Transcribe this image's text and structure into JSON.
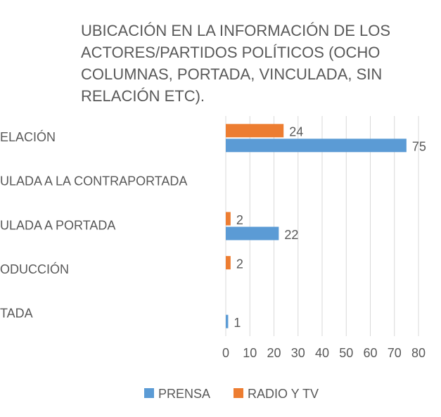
{
  "chart_data": {
    "type": "barh",
    "title": "UBICACIÓN EN LA INFORMACIÓN DE LOS ACTORES/PARTIDOS POLÍTICOS (OCHO COLUMNAS, PORTADA, VINCULADA, SIN RELACIÓN ETC).",
    "categories": [
      "ELACIÓN",
      "ULADA A LA CONTRAPORTADA",
      "ULADA A PORTADA",
      "ODUCCIÓN",
      "TADA"
    ],
    "series": [
      {
        "name": "PRENSA",
        "color": "#5b9bd5",
        "values": [
          75,
          null,
          22,
          null,
          1
        ]
      },
      {
        "name": "RADIO Y TV",
        "color": "#ed7d31",
        "values": [
          24,
          null,
          2,
          2,
          null
        ]
      }
    ],
    "xlim": [
      0,
      80
    ],
    "xticks": [
      0,
      10,
      20,
      30,
      40,
      50,
      60,
      70,
      80
    ],
    "grid": true,
    "legend": "bottom"
  }
}
